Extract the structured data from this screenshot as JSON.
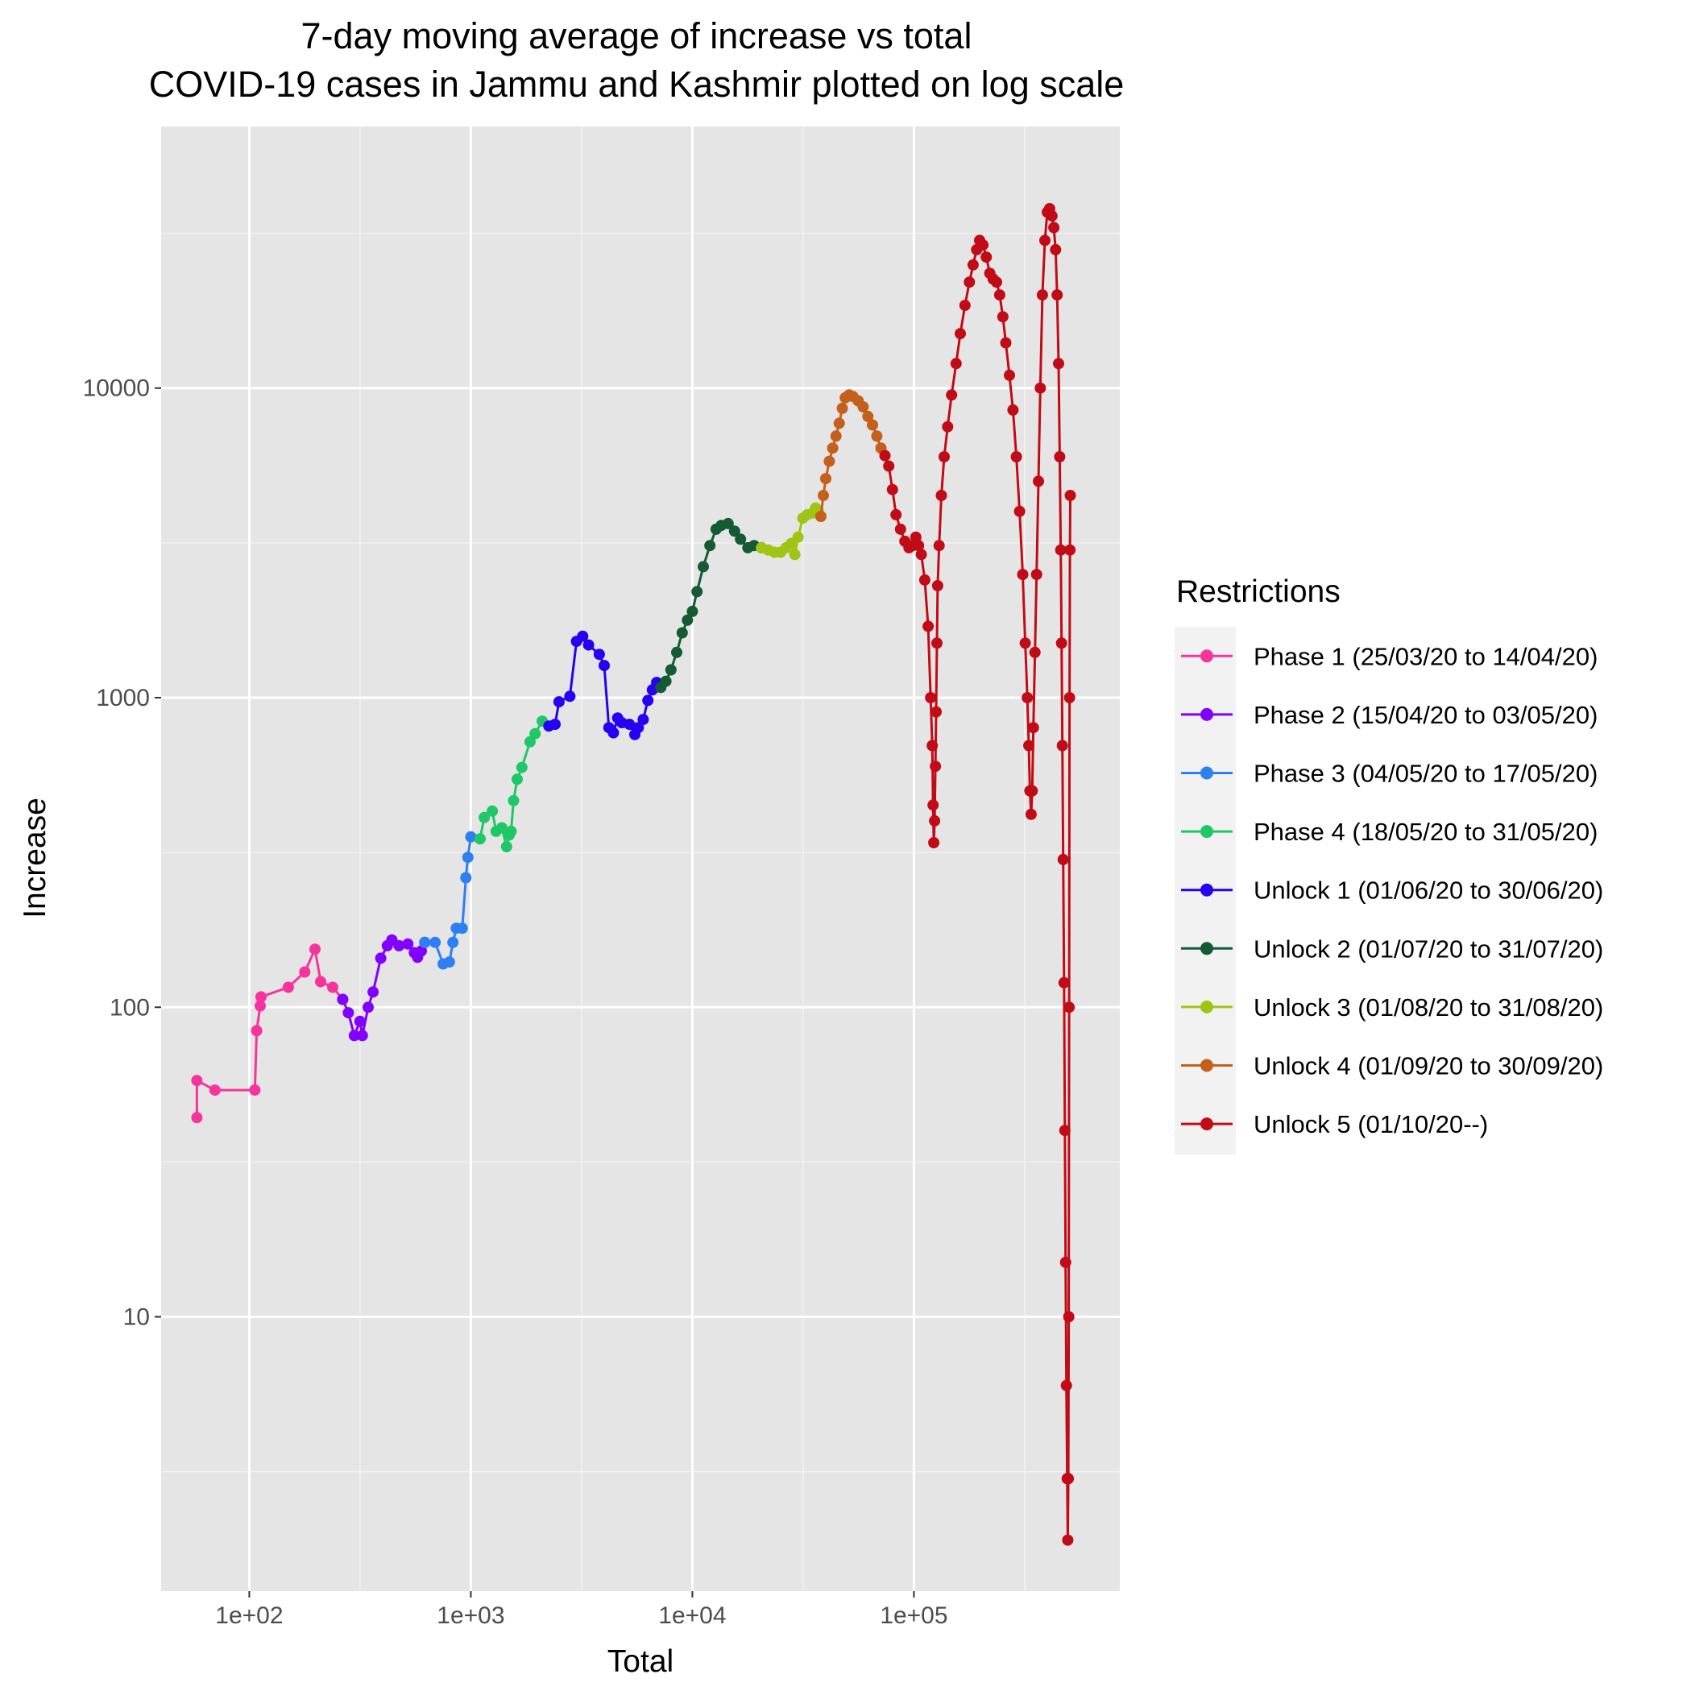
{
  "chart_data": {
    "type": "line",
    "title_lines": [
      "7-day moving average of increase vs total",
      "COVID-19 cases in Jammu and Kashmir plotted on log scale"
    ],
    "xlabel": "Total",
    "ylabel": "Increase",
    "xscale": "log10",
    "yscale": "log10",
    "xlim": [
      40,
      850000
    ],
    "ylim": [
      1.3,
      70000
    ],
    "x_ticks": [
      {
        "value": 100,
        "label": "1e+02"
      },
      {
        "value": 1000,
        "label": "1e+03"
      },
      {
        "value": 10000,
        "label": "1e+04"
      },
      {
        "value": 100000,
        "label": "1e+05"
      }
    ],
    "y_ticks": [
      {
        "value": 10,
        "label": "10"
      },
      {
        "value": 100,
        "label": "100"
      },
      {
        "value": 1000,
        "label": "1000"
      },
      {
        "value": 10000,
        "label": "10000"
      }
    ],
    "grid": true,
    "panel_background": "#e5e5e5",
    "legend": {
      "title": "Restrictions",
      "position": "right"
    },
    "series": [
      {
        "name": "Phase 1 (25/03/20 to 14/04/20)",
        "color": "#f7339e",
        "points": [
          [
            58,
            44
          ],
          [
            58,
            58
          ],
          [
            70,
            54
          ],
          [
            106,
            54
          ],
          [
            108,
            84
          ],
          [
            112,
            101
          ],
          [
            113,
            108
          ],
          [
            150,
            116
          ],
          [
            178,
            130
          ],
          [
            198,
            154
          ],
          [
            210,
            121
          ],
          [
            238,
            116
          ],
          [
            264,
            106
          ]
        ]
      },
      {
        "name": "Phase 2 (15/04/20 to 03/05/20)",
        "color": "#8200ff",
        "points": [
          [
            264,
            106
          ],
          [
            280,
            96
          ],
          [
            298,
            81
          ],
          [
            316,
            90
          ],
          [
            324,
            81
          ],
          [
            344,
            100
          ],
          [
            362,
            112
          ],
          [
            392,
            144
          ],
          [
            420,
            158
          ],
          [
            440,
            165
          ],
          [
            474,
            158
          ],
          [
            520,
            160
          ],
          [
            556,
            150
          ],
          [
            575,
            145
          ],
          [
            598,
            152
          ],
          [
            620,
            162
          ]
        ]
      },
      {
        "name": "Phase 3 (04/05/20 to 17/05/20)",
        "color": "#2e7ff1",
        "points": [
          [
            620,
            162
          ],
          [
            690,
            162
          ],
          [
            750,
            138
          ],
          [
            800,
            140
          ],
          [
            830,
            162
          ],
          [
            860,
            180
          ],
          [
            915,
            180
          ],
          [
            950,
            262
          ],
          [
            970,
            305
          ],
          [
            1000,
            355
          ],
          [
            1100,
            350
          ]
        ]
      },
      {
        "name": "Phase 4 (18/05/20 to 31/05/20)",
        "color": "#1ec866",
        "points": [
          [
            1100,
            350
          ],
          [
            1150,
            410
          ],
          [
            1250,
            430
          ],
          [
            1300,
            370
          ],
          [
            1380,
            380
          ],
          [
            1450,
            330
          ],
          [
            1490,
            360
          ],
          [
            1520,
            370
          ],
          [
            1560,
            465
          ],
          [
            1620,
            545
          ],
          [
            1700,
            595
          ],
          [
            1850,
            720
          ],
          [
            1950,
            765
          ],
          [
            2100,
            840
          ],
          [
            2250,
            810
          ]
        ]
      },
      {
        "name": "Unlock 1 (01/06/20 to 30/06/20)",
        "color": "#2600f2",
        "points": [
          [
            2250,
            810
          ],
          [
            2400,
            820
          ],
          [
            2500,
            970
          ],
          [
            2800,
            1010
          ],
          [
            3000,
            1520
          ],
          [
            3200,
            1580
          ],
          [
            3400,
            1480
          ],
          [
            3800,
            1380
          ],
          [
            4000,
            1270
          ],
          [
            4200,
            800
          ],
          [
            4400,
            770
          ],
          [
            4600,
            860
          ],
          [
            4800,
            830
          ],
          [
            5200,
            820
          ],
          [
            5500,
            760
          ],
          [
            5700,
            800
          ],
          [
            6000,
            850
          ],
          [
            6300,
            980
          ],
          [
            6600,
            1060
          ],
          [
            6900,
            1120
          ],
          [
            7200,
            1080
          ]
        ]
      },
      {
        "name": "Unlock 2 (01/07/20 to 31/07/20)",
        "color": "#145a32",
        "points": [
          [
            7200,
            1080
          ],
          [
            7600,
            1130
          ],
          [
            8000,
            1230
          ],
          [
            8500,
            1400
          ],
          [
            9000,
            1620
          ],
          [
            9500,
            1780
          ],
          [
            10000,
            1900
          ],
          [
            10500,
            2200
          ],
          [
            11200,
            2650
          ],
          [
            12000,
            3100
          ],
          [
            12800,
            3500
          ],
          [
            13500,
            3600
          ],
          [
            14500,
            3650
          ],
          [
            15500,
            3450
          ],
          [
            16500,
            3250
          ],
          [
            17800,
            3050
          ],
          [
            19000,
            3100
          ],
          [
            20500,
            3050
          ]
        ]
      },
      {
        "name": "Unlock 3 (01/08/20 to 31/08/20)",
        "color": "#a0c414",
        "points": [
          [
            20500,
            3050
          ],
          [
            22000,
            3000
          ],
          [
            23500,
            2950
          ],
          [
            25000,
            2950
          ],
          [
            26500,
            3050
          ],
          [
            28000,
            3150
          ],
          [
            29000,
            2900
          ],
          [
            30000,
            3300
          ],
          [
            31500,
            3800
          ],
          [
            33000,
            3900
          ],
          [
            35000,
            3950
          ],
          [
            36000,
            4100
          ],
          [
            37000,
            4000
          ],
          [
            38000,
            3850
          ]
        ]
      },
      {
        "name": "Unlock 4 (01/09/20 to 30/09/20)",
        "color": "#c45f1c",
        "points": [
          [
            38000,
            3850
          ],
          [
            39000,
            4500
          ],
          [
            40000,
            5100
          ],
          [
            41500,
            5800
          ],
          [
            43000,
            6400
          ],
          [
            44500,
            7000
          ],
          [
            46000,
            7700
          ],
          [
            47500,
            8600
          ],
          [
            49000,
            9300
          ],
          [
            51000,
            9500
          ],
          [
            53000,
            9400
          ],
          [
            56000,
            9100
          ],
          [
            59000,
            8700
          ],
          [
            62000,
            8100
          ],
          [
            65000,
            7600
          ],
          [
            68000,
            7000
          ],
          [
            71000,
            6400
          ],
          [
            74000,
            6050
          ]
        ]
      },
      {
        "name": "Unlock 5 (01/10/20--)",
        "color": "#c10b16",
        "points": [
          [
            74000,
            6050
          ],
          [
            77000,
            5600
          ],
          [
            80000,
            4700
          ],
          [
            83000,
            3900
          ],
          [
            87000,
            3500
          ],
          [
            91000,
            3200
          ],
          [
            95000,
            3050
          ],
          [
            99000,
            3100
          ],
          [
            102000,
            3300
          ],
          [
            105000,
            3100
          ],
          [
            108000,
            2900
          ],
          [
            112000,
            2400
          ],
          [
            116000,
            1700
          ],
          [
            119000,
            1000
          ],
          [
            121000,
            700
          ],
          [
            122000,
            450
          ],
          [
            123000,
            340
          ],
          [
            124000,
            400
          ],
          [
            125000,
            600
          ],
          [
            126000,
            900
          ],
          [
            127000,
            1500
          ],
          [
            128000,
            2300
          ],
          [
            130000,
            3100
          ],
          [
            133000,
            4500
          ],
          [
            137000,
            6000
          ],
          [
            142000,
            7500
          ],
          [
            148000,
            9500
          ],
          [
            155000,
            12000
          ],
          [
            162000,
            15000
          ],
          [
            170000,
            18500
          ],
          [
            178000,
            22000
          ],
          [
            185000,
            25000
          ],
          [
            192000,
            28000
          ],
          [
            198000,
            30000
          ],
          [
            205000,
            29000
          ],
          [
            212000,
            26500
          ],
          [
            220000,
            23500
          ],
          [
            228000,
            22500
          ],
          [
            236000,
            22000
          ],
          [
            244000,
            20000
          ],
          [
            252000,
            17000
          ],
          [
            260000,
            14000
          ],
          [
            270000,
            11000
          ],
          [
            280000,
            8500
          ],
          [
            290000,
            6000
          ],
          [
            300000,
            4000
          ],
          [
            310000,
            2500
          ],
          [
            318000,
            1500
          ],
          [
            325000,
            1000
          ],
          [
            330000,
            700
          ],
          [
            334000,
            500
          ],
          [
            338000,
            420
          ],
          [
            342000,
            500
          ],
          [
            346000,
            800
          ],
          [
            352000,
            1400
          ],
          [
            358000,
            2500
          ],
          [
            365000,
            5000
          ],
          [
            372000,
            10000
          ],
          [
            380000,
            20000
          ],
          [
            390000,
            30000
          ],
          [
            400000,
            37000
          ],
          [
            410000,
            38000
          ],
          [
            420000,
            36000
          ],
          [
            428000,
            33000
          ],
          [
            436000,
            28000
          ],
          [
            443000,
            20000
          ],
          [
            450000,
            12000
          ],
          [
            455000,
            6000
          ],
          [
            460000,
            3000
          ],
          [
            464000,
            1500
          ],
          [
            468000,
            700
          ],
          [
            472000,
            300
          ],
          [
            476000,
            120
          ],
          [
            480000,
            40
          ],
          [
            484000,
            15
          ],
          [
            488000,
            6
          ],
          [
            492000,
            3
          ],
          [
            495000,
            1.9
          ],
          [
            498000,
            3
          ],
          [
            500000,
            10
          ],
          [
            502000,
            100
          ],
          [
            504000,
            1000
          ],
          [
            506000,
            3000
          ],
          [
            508000,
            4500
          ]
        ]
      }
    ]
  }
}
